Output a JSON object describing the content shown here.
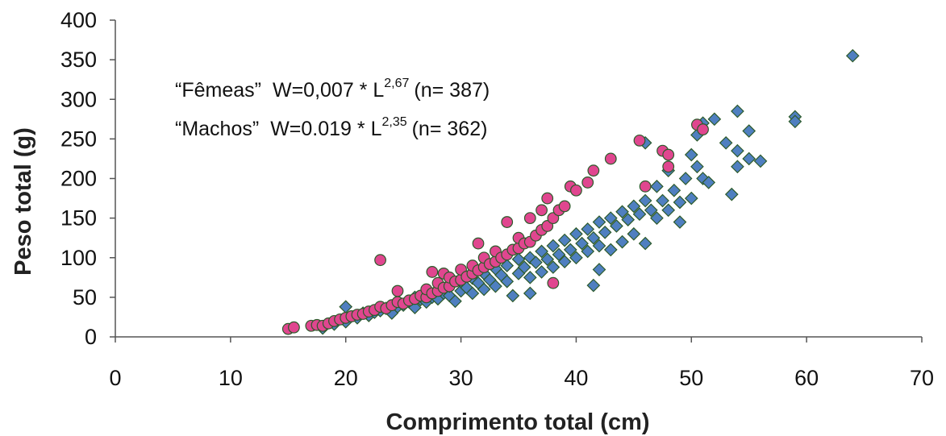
{
  "chart_data": {
    "type": "scatter",
    "title": "",
    "xlabel": "Comprimento total (cm)",
    "ylabel": "Peso total (g)",
    "xlim": [
      0,
      70
    ],
    "ylim": [
      0,
      400
    ],
    "x_ticks": [
      "0",
      "10",
      "20",
      "30",
      "40",
      "50",
      "60",
      "70"
    ],
    "y_ticks": [
      "0",
      "50",
      "100",
      "150",
      "200",
      "250",
      "300",
      "350",
      "400"
    ],
    "grid": false,
    "legend": "none",
    "annotations": [
      {
        "group": "“Fêmeas”",
        "equation": "W=0,007 * L",
        "exponent": "2,67",
        "n": "(n= 387)"
      },
      {
        "group": "“Machos”",
        "equation": "W=0.019 * L",
        "exponent": "2,35",
        "n": "(n= 362)"
      }
    ],
    "series": [
      {
        "marker": "diamond",
        "color": "#4f7fc0",
        "points": [
          [
            18,
            11
          ],
          [
            19,
            16
          ],
          [
            20,
            19
          ],
          [
            20,
            38
          ],
          [
            21,
            24
          ],
          [
            21.5,
            30
          ],
          [
            22,
            27
          ],
          [
            22.5,
            31
          ],
          [
            23,
            33
          ],
          [
            23.5,
            36
          ],
          [
            24,
            30
          ],
          [
            24.5,
            38
          ],
          [
            25,
            40
          ],
          [
            25.5,
            44
          ],
          [
            26,
            37
          ],
          [
            26,
            50
          ],
          [
            26.5,
            47
          ],
          [
            27,
            44
          ],
          [
            27,
            55
          ],
          [
            27.5,
            50
          ],
          [
            28,
            48
          ],
          [
            28,
            60
          ],
          [
            28.5,
            55
          ],
          [
            29,
            52
          ],
          [
            29,
            64
          ],
          [
            29.5,
            45
          ],
          [
            30,
            58
          ],
          [
            30,
            70
          ],
          [
            30.5,
            62
          ],
          [
            31,
            55
          ],
          [
            31,
            74
          ],
          [
            31.5,
            68
          ],
          [
            32,
            60
          ],
          [
            32,
            80
          ],
          [
            32.5,
            72
          ],
          [
            33,
            64
          ],
          [
            33,
            86
          ],
          [
            33.5,
            78
          ],
          [
            34,
            70
          ],
          [
            34,
            90
          ],
          [
            34.5,
            52
          ],
          [
            35,
            80
          ],
          [
            35,
            98
          ],
          [
            35.5,
            88
          ],
          [
            36,
            55
          ],
          [
            36,
            75
          ],
          [
            36,
            100
          ],
          [
            36.5,
            94
          ],
          [
            37,
            82
          ],
          [
            37,
            108
          ],
          [
            37.5,
            98
          ],
          [
            38,
            88
          ],
          [
            38,
            115
          ],
          [
            38.5,
            104
          ],
          [
            39,
            95
          ],
          [
            39,
            122
          ],
          [
            39.5,
            110
          ],
          [
            40,
            100
          ],
          [
            40,
            130
          ],
          [
            40.5,
            118
          ],
          [
            41,
            108
          ],
          [
            41,
            136
          ],
          [
            41.5,
            65
          ],
          [
            41.5,
            125
          ],
          [
            42,
            85
          ],
          [
            42,
            115
          ],
          [
            42,
            145
          ],
          [
            42.5,
            132
          ],
          [
            43,
            110
          ],
          [
            43,
            150
          ],
          [
            43.5,
            140
          ],
          [
            44,
            120
          ],
          [
            44,
            158
          ],
          [
            44.5,
            148
          ],
          [
            45,
            130
          ],
          [
            45,
            165
          ],
          [
            45.5,
            155
          ],
          [
            46,
            118
          ],
          [
            46,
            245
          ],
          [
            46,
            172
          ],
          [
            46.5,
            160
          ],
          [
            47,
            150
          ],
          [
            47,
            190
          ],
          [
            47.5,
            172
          ],
          [
            48,
            160
          ],
          [
            48,
            210
          ],
          [
            48.5,
            185
          ],
          [
            49,
            145
          ],
          [
            49,
            170
          ],
          [
            49.5,
            200
          ],
          [
            50,
            175
          ],
          [
            50,
            230
          ],
          [
            50.5,
            215
          ],
          [
            50.5,
            255
          ],
          [
            51,
            200
          ],
          [
            51,
            270
          ],
          [
            51.5,
            195
          ],
          [
            52,
            275
          ],
          [
            53,
            245
          ],
          [
            53.5,
            180
          ],
          [
            54,
            215
          ],
          [
            54,
            235
          ],
          [
            54,
            285
          ],
          [
            55,
            225
          ],
          [
            55,
            260
          ],
          [
            56,
            222
          ],
          [
            59,
            278
          ],
          [
            59,
            272
          ],
          [
            64,
            355
          ]
        ]
      },
      {
        "marker": "circle",
        "color": "#e0468f",
        "points": [
          [
            15,
            10
          ],
          [
            15.5,
            12
          ],
          [
            17,
            14
          ],
          [
            17.5,
            15
          ],
          [
            18,
            14
          ],
          [
            18.5,
            17
          ],
          [
            19,
            20
          ],
          [
            19.5,
            22
          ],
          [
            20,
            24
          ],
          [
            20.5,
            26
          ],
          [
            21,
            28
          ],
          [
            21.5,
            29
          ],
          [
            22,
            32
          ],
          [
            22.5,
            34
          ],
          [
            23,
            97
          ],
          [
            23,
            38
          ],
          [
            23.5,
            36
          ],
          [
            24,
            40
          ],
          [
            24.5,
            44
          ],
          [
            24.5,
            58
          ],
          [
            25,
            42
          ],
          [
            25.5,
            46
          ],
          [
            26,
            48
          ],
          [
            26.5,
            52
          ],
          [
            27,
            50
          ],
          [
            27,
            60
          ],
          [
            27.5,
            55
          ],
          [
            27.5,
            82
          ],
          [
            28,
            58
          ],
          [
            28,
            68
          ],
          [
            28.5,
            62
          ],
          [
            28.5,
            80
          ],
          [
            29,
            64
          ],
          [
            29,
            75
          ],
          [
            29.5,
            70
          ],
          [
            30,
            72
          ],
          [
            30,
            85
          ],
          [
            30.5,
            76
          ],
          [
            31,
            80
          ],
          [
            31,
            90
          ],
          [
            31.5,
            84
          ],
          [
            31.5,
            118
          ],
          [
            32,
            88
          ],
          [
            32,
            100
          ],
          [
            32.5,
            92
          ],
          [
            33,
            95
          ],
          [
            33,
            108
          ],
          [
            33.5,
            100
          ],
          [
            34,
            104
          ],
          [
            34,
            145
          ],
          [
            34.5,
            110
          ],
          [
            35,
            112
          ],
          [
            35,
            125
          ],
          [
            35.5,
            118
          ],
          [
            36,
            120
          ],
          [
            36,
            150
          ],
          [
            36.5,
            128
          ],
          [
            37,
            135
          ],
          [
            37,
            160
          ],
          [
            37.5,
            140
          ],
          [
            37.5,
            175
          ],
          [
            38,
            68
          ],
          [
            38,
            150
          ],
          [
            38.5,
            160
          ],
          [
            39,
            165
          ],
          [
            39.5,
            190
          ],
          [
            40,
            185
          ],
          [
            41,
            195
          ],
          [
            41.5,
            210
          ],
          [
            43,
            225
          ],
          [
            45.5,
            248
          ],
          [
            46,
            190
          ],
          [
            47.5,
            235
          ],
          [
            48,
            230
          ],
          [
            48,
            215
          ],
          [
            50.5,
            268
          ],
          [
            51,
            262
          ]
        ]
      }
    ]
  }
}
